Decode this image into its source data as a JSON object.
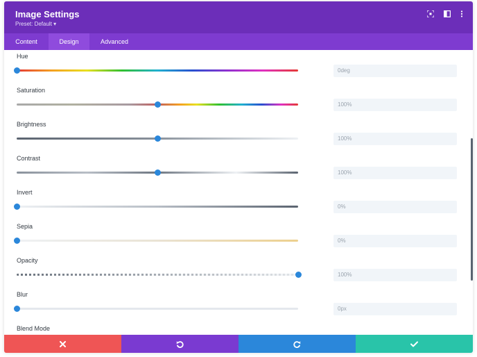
{
  "header": {
    "title": "Image Settings",
    "preset_label": "Preset: Default ▾",
    "icons": [
      "expand-icon",
      "sidebar-toggle-icon",
      "more-vertical-icon"
    ]
  },
  "tabs": [
    {
      "label": "Content",
      "active": false
    },
    {
      "label": "Design",
      "active": true
    },
    {
      "label": "Advanced",
      "active": false
    }
  ],
  "settings": [
    {
      "label": "Hue",
      "value": "0deg",
      "position": 0.0
    },
    {
      "label": "Saturation",
      "value": "100%",
      "position": 0.5
    },
    {
      "label": "Brightness",
      "value": "100%",
      "position": 0.5
    },
    {
      "label": "Contrast",
      "value": "100%",
      "position": 0.5
    },
    {
      "label": "Invert",
      "value": "0%",
      "position": 0.0
    },
    {
      "label": "Sepia",
      "value": "0%",
      "position": 0.0
    },
    {
      "label": "Opacity",
      "value": "100%",
      "position": 1.0
    },
    {
      "label": "Blur",
      "value": "0px",
      "position": 0.0
    },
    {
      "label": "Blend Mode"
    }
  ],
  "footer": {
    "buttons": [
      {
        "name": "discard-button",
        "icon": "close-icon",
        "color": "#ef5555"
      },
      {
        "name": "undo-button",
        "icon": "undo-icon",
        "color": "#7a3ad1"
      },
      {
        "name": "redo-button",
        "icon": "redo-icon",
        "color": "#2b87da"
      },
      {
        "name": "save-button",
        "icon": "check-icon",
        "color": "#29c4a9"
      }
    ]
  },
  "colors": {
    "header_bg": "#6c2eb9",
    "tabs_bg": "#7e3bd0",
    "active_tab_bg": "#8f4bdd",
    "thumb": "#2b87da"
  }
}
